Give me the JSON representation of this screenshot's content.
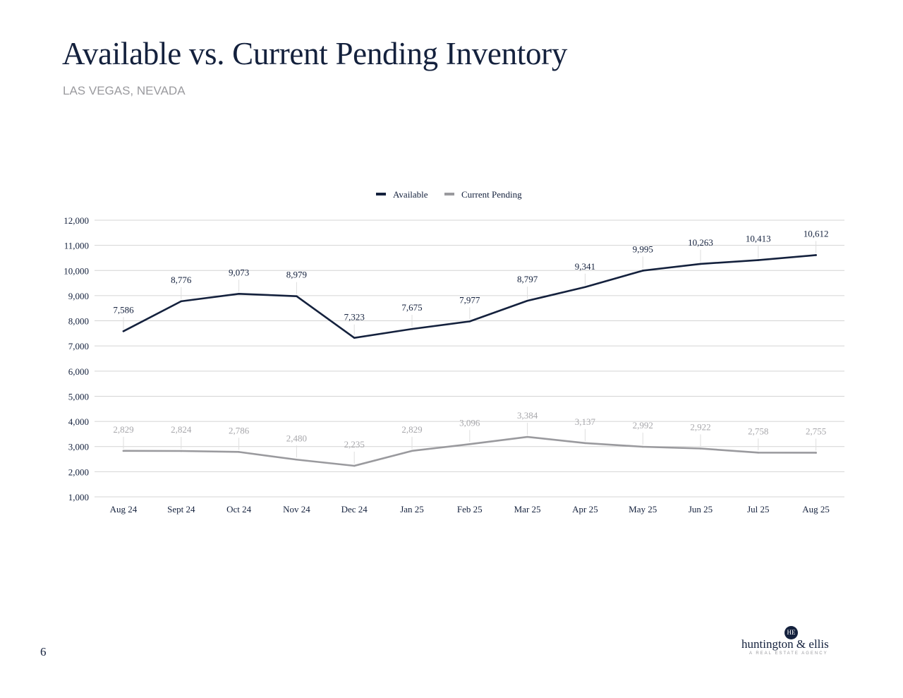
{
  "page": {
    "title": "Available vs. Current Pending Inventory",
    "subtitle": "LAS VEGAS, NEVADA",
    "page_number": "6"
  },
  "logo": {
    "mark": "HE",
    "name": "huntington & ellis",
    "tagline": "A REAL ESTATE AGENCY"
  },
  "colors": {
    "available": "#14213d",
    "pending": "#9a9a9e",
    "grid": "#d4d4d4"
  },
  "chart_data": {
    "type": "line",
    "title": "",
    "xlabel": "",
    "ylabel": "",
    "ylim": [
      1000,
      12000
    ],
    "yticks": [
      1000,
      2000,
      3000,
      4000,
      5000,
      6000,
      7000,
      8000,
      9000,
      10000,
      11000,
      12000
    ],
    "ytick_labels": [
      "1,000",
      "2,000",
      "3,000",
      "4,000",
      "5,000",
      "6,000",
      "7,000",
      "8,000",
      "9,000",
      "10,000",
      "11,000",
      "12,000"
    ],
    "grid": true,
    "legend": "top-center",
    "categories": [
      "Aug 24",
      "Sept 24",
      "Oct 24",
      "Nov 24",
      "Dec 24",
      "Jan 25",
      "Feb 25",
      "Mar 25",
      "Apr 25",
      "May 25",
      "Jun 25",
      "Jul 25",
      "Aug 25"
    ],
    "series": [
      {
        "name": "Available",
        "color": "#14213d",
        "values": [
          7586,
          8776,
          9073,
          8979,
          7323,
          7675,
          7977,
          8797,
          9341,
          9995,
          10263,
          10413,
          10612
        ],
        "labels": [
          "7,586",
          "8,776",
          "9,073",
          "8,979",
          "7,323",
          "7,675",
          "7,977",
          "8,797",
          "9,341",
          "9,995",
          "10,263",
          "10,413",
          "10,612"
        ]
      },
      {
        "name": "Current Pending",
        "color": "#9a9a9e",
        "values": [
          2829,
          2824,
          2786,
          2480,
          2235,
          2829,
          3096,
          3384,
          3137,
          2992,
          2922,
          2758,
          2755
        ],
        "labels": [
          "2,829",
          "2,824",
          "2,786",
          "2,480",
          "2,235",
          "2,829",
          "3,096",
          "3,384",
          "3,137",
          "2,992",
          "2,922",
          "2,758",
          "2,755"
        ]
      }
    ]
  }
}
